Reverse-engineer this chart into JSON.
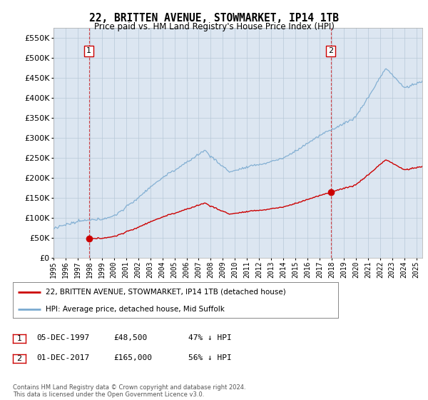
{
  "title": "22, BRITTEN AVENUE, STOWMARKET, IP14 1TB",
  "subtitle": "Price paid vs. HM Land Registry's House Price Index (HPI)",
  "legend_line1": "22, BRITTEN AVENUE, STOWMARKET, IP14 1TB (detached house)",
  "legend_line2": "HPI: Average price, detached house, Mid Suffolk",
  "annotation1_label": "1",
  "annotation1_date": "05-DEC-1997",
  "annotation1_price": "£48,500",
  "annotation1_hpi": "47% ↓ HPI",
  "annotation1_year": 1997.92,
  "annotation1_value": 48500,
  "annotation2_label": "2",
  "annotation2_date": "01-DEC-2017",
  "annotation2_price": "£165,000",
  "annotation2_hpi": "56% ↓ HPI",
  "annotation2_year": 2017.92,
  "annotation2_value": 165000,
  "footer": "Contains HM Land Registry data © Crown copyright and database right 2024.\nThis data is licensed under the Open Government Licence v3.0.",
  "ylim": [
    0,
    575000
  ],
  "xlim_start": 1995.0,
  "xlim_end": 2025.5,
  "property_color": "#cc0000",
  "hpi_color": "#7aaad0",
  "vline_color": "#cc0000",
  "plot_bg_color": "#dce6f1",
  "fig_bg_color": "#ffffff",
  "grid_color": "#b8c8d8"
}
